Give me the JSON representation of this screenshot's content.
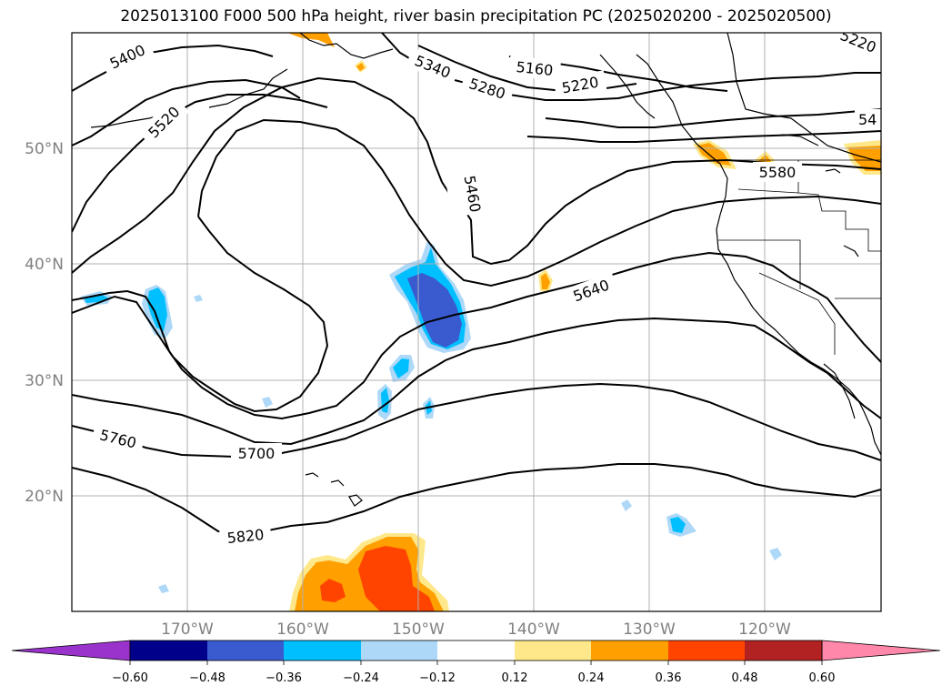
{
  "title": "2025013100 F000 500 hPa height, river basin precipitation PC (2025020200 - 2025020500)",
  "map": {
    "lon_range": [
      -180,
      -110
    ],
    "lat_range": [
      10,
      60
    ],
    "lat_ticks": [
      {
        "value": 50,
        "label": "50°N"
      },
      {
        "value": 40,
        "label": "40°N"
      },
      {
        "value": 30,
        "label": "30°N"
      },
      {
        "value": 20,
        "label": "20°N"
      }
    ],
    "lon_ticks": [
      {
        "value": -170,
        "label": "170°W"
      },
      {
        "value": -160,
        "label": "160°W"
      },
      {
        "value": -150,
        "label": "150°W"
      },
      {
        "value": -140,
        "label": "140°W"
      },
      {
        "value": -130,
        "label": "130°W"
      },
      {
        "value": -120,
        "label": "120°W"
      }
    ],
    "gridlines": true
  },
  "contours": {
    "variable": "500 hPa height",
    "labels": [
      "5400",
      "5520",
      "5340",
      "5280",
      "5160",
      "5220",
      "5220",
      "54",
      "5460",
      "5580",
      "5640",
      "5700",
      "5760",
      "5820"
    ]
  },
  "colorbar": {
    "ticks": [
      "−0.60",
      "−0.48",
      "−0.36",
      "−0.24",
      "−0.12",
      "0.12",
      "0.24",
      "0.36",
      "0.48",
      "0.60"
    ],
    "under_color": "#9933cc",
    "over_color": "#ff88aa",
    "colors": [
      "#00008b",
      "#3a5bd0",
      "#00bfff",
      "#add8f8",
      "#ffffff",
      "#ffe88a",
      "#ffa000",
      "#ff4400",
      "#b22222"
    ]
  }
}
